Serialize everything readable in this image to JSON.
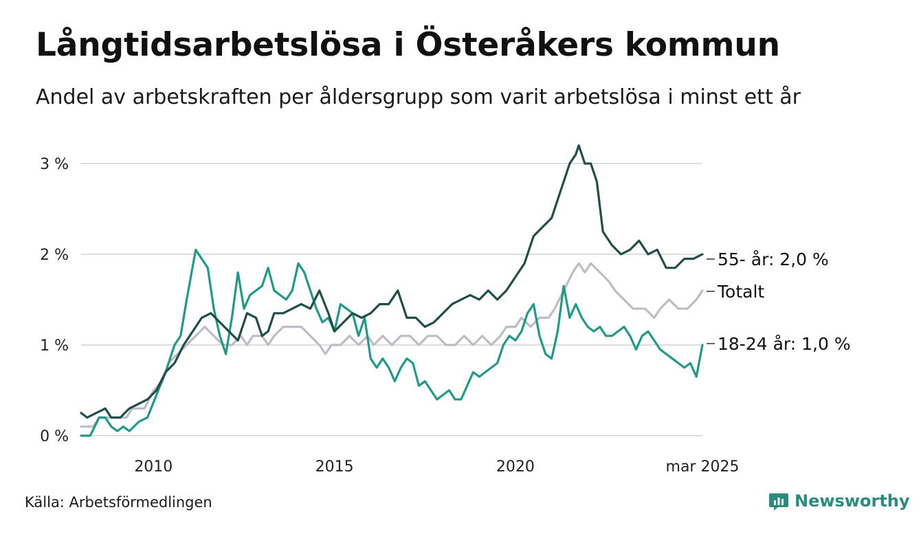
{
  "header": {
    "title": "Långtidsarbetslösa i Österåkers kommun",
    "subtitle": "Andel av arbetskraften per åldersgrupp som varit arbetslösa i minst ett år"
  },
  "footer": {
    "source": "Källa: Arbetsförmedlingen",
    "brand": "Newsworthy",
    "brand_icon": "newsworthy-chart-icon"
  },
  "colors": {
    "series_55": "#1f4d47",
    "series_totalt": "#bdbbc5",
    "series_18_24": "#1f9a88",
    "grid": "#dddddd",
    "brand": "#2a8c7e"
  },
  "chart_data": {
    "type": "line",
    "title": "",
    "xlabel": "",
    "ylabel": "",
    "ylim": [
      0,
      3.2
    ],
    "xlim": [
      "2008-01",
      "2025-03"
    ],
    "grid": "horizontal",
    "yticks": [
      {
        "value": 0,
        "label": "0 %"
      },
      {
        "value": 1,
        "label": "1 %"
      },
      {
        "value": 2,
        "label": "2 %"
      },
      {
        "value": 3,
        "label": "3 %"
      }
    ],
    "xticks": [
      {
        "value": "2010-01",
        "label": "2010"
      },
      {
        "value": "2015-01",
        "label": "2015"
      },
      {
        "value": "2020-01",
        "label": "2020"
      },
      {
        "value": "2025-03",
        "label": "mar 2025"
      }
    ],
    "series": [
      {
        "key": "totalt",
        "name": "Totalt",
        "end_label": "Totalt",
        "points": [
          [
            "2008-01",
            0.1
          ],
          [
            "2008-05",
            0.1
          ],
          [
            "2008-07",
            0.2
          ],
          [
            "2008-11",
            0.2
          ],
          [
            "2009-04",
            0.2
          ],
          [
            "2009-06",
            0.3
          ],
          [
            "2009-10",
            0.3
          ],
          [
            "2010-01",
            0.5
          ],
          [
            "2010-04",
            0.6
          ],
          [
            "2010-06",
            0.8
          ],
          [
            "2010-09",
            0.9
          ],
          [
            "2010-12",
            1.0
          ],
          [
            "2011-03",
            1.1
          ],
          [
            "2011-06",
            1.2
          ],
          [
            "2011-09",
            1.1
          ],
          [
            "2011-12",
            1.0
          ],
          [
            "2012-03",
            1.0
          ],
          [
            "2012-06",
            1.1
          ],
          [
            "2012-08",
            1.0
          ],
          [
            "2012-10",
            1.1
          ],
          [
            "2013-01",
            1.1
          ],
          [
            "2013-03",
            1.0
          ],
          [
            "2013-05",
            1.1
          ],
          [
            "2013-08",
            1.2
          ],
          [
            "2013-11",
            1.2
          ],
          [
            "2014-02",
            1.2
          ],
          [
            "2014-05",
            1.1
          ],
          [
            "2014-08",
            1.0
          ],
          [
            "2014-10",
            0.9
          ],
          [
            "2014-12",
            1.0
          ],
          [
            "2015-03",
            1.0
          ],
          [
            "2015-06",
            1.1
          ],
          [
            "2015-09",
            1.0
          ],
          [
            "2015-12",
            1.1
          ],
          [
            "2016-02",
            1.0
          ],
          [
            "2016-05",
            1.1
          ],
          [
            "2016-08",
            1.0
          ],
          [
            "2016-11",
            1.1
          ],
          [
            "2017-02",
            1.1
          ],
          [
            "2017-05",
            1.0
          ],
          [
            "2017-08",
            1.1
          ],
          [
            "2017-11",
            1.1
          ],
          [
            "2018-02",
            1.0
          ],
          [
            "2018-05",
            1.0
          ],
          [
            "2018-08",
            1.1
          ],
          [
            "2018-11",
            1.0
          ],
          [
            "2019-02",
            1.1
          ],
          [
            "2019-05",
            1.0
          ],
          [
            "2019-08",
            1.1
          ],
          [
            "2019-10",
            1.2
          ],
          [
            "2020-01",
            1.2
          ],
          [
            "2020-03",
            1.3
          ],
          [
            "2020-06",
            1.2
          ],
          [
            "2020-09",
            1.3
          ],
          [
            "2020-12",
            1.3
          ],
          [
            "2021-02",
            1.4
          ],
          [
            "2021-05",
            1.6
          ],
          [
            "2021-08",
            1.8
          ],
          [
            "2021-10",
            1.9
          ],
          [
            "2021-12",
            1.8
          ],
          [
            "2022-02",
            1.9
          ],
          [
            "2022-05",
            1.8
          ],
          [
            "2022-08",
            1.7
          ],
          [
            "2022-10",
            1.6
          ],
          [
            "2023-01",
            1.5
          ],
          [
            "2023-04",
            1.4
          ],
          [
            "2023-08",
            1.4
          ],
          [
            "2023-11",
            1.3
          ],
          [
            "2024-01",
            1.4
          ],
          [
            "2024-04",
            1.5
          ],
          [
            "2024-07",
            1.4
          ],
          [
            "2024-10",
            1.4
          ],
          [
            "2025-01",
            1.5
          ],
          [
            "2025-03",
            1.6
          ]
        ]
      },
      {
        "key": "s18_24",
        "name": "18-24 år",
        "end_label": "18-24 år: 1,0 %",
        "points": [
          [
            "2008-01",
            0.0
          ],
          [
            "2008-04",
            0.0
          ],
          [
            "2008-07",
            0.2
          ],
          [
            "2008-09",
            0.2
          ],
          [
            "2008-11",
            0.1
          ],
          [
            "2009-01",
            0.05
          ],
          [
            "2009-03",
            0.1
          ],
          [
            "2009-05",
            0.05
          ],
          [
            "2009-08",
            0.15
          ],
          [
            "2009-11",
            0.2
          ],
          [
            "2010-02",
            0.45
          ],
          [
            "2010-05",
            0.7
          ],
          [
            "2010-08",
            1.0
          ],
          [
            "2010-10",
            1.1
          ],
          [
            "2010-12",
            1.5
          ],
          [
            "2011-03",
            2.05
          ],
          [
            "2011-05",
            1.95
          ],
          [
            "2011-07",
            1.85
          ],
          [
            "2011-09",
            1.4
          ],
          [
            "2011-11",
            1.1
          ],
          [
            "2012-01",
            0.9
          ],
          [
            "2012-03",
            1.3
          ],
          [
            "2012-05",
            1.8
          ],
          [
            "2012-07",
            1.4
          ],
          [
            "2012-09",
            1.55
          ],
          [
            "2012-11",
            1.6
          ],
          [
            "2013-01",
            1.65
          ],
          [
            "2013-03",
            1.85
          ],
          [
            "2013-05",
            1.6
          ],
          [
            "2013-07",
            1.55
          ],
          [
            "2013-09",
            1.5
          ],
          [
            "2013-11",
            1.6
          ],
          [
            "2014-01",
            1.9
          ],
          [
            "2014-03",
            1.8
          ],
          [
            "2014-05",
            1.6
          ],
          [
            "2014-07",
            1.4
          ],
          [
            "2014-09",
            1.25
          ],
          [
            "2014-11",
            1.3
          ],
          [
            "2015-01",
            1.15
          ],
          [
            "2015-03",
            1.45
          ],
          [
            "2015-05",
            1.4
          ],
          [
            "2015-07",
            1.35
          ],
          [
            "2015-09",
            1.1
          ],
          [
            "2015-11",
            1.3
          ],
          [
            "2016-01",
            0.85
          ],
          [
            "2016-03",
            0.75
          ],
          [
            "2016-05",
            0.85
          ],
          [
            "2016-07",
            0.75
          ],
          [
            "2016-09",
            0.6
          ],
          [
            "2016-11",
            0.75
          ],
          [
            "2017-01",
            0.85
          ],
          [
            "2017-03",
            0.8
          ],
          [
            "2017-05",
            0.55
          ],
          [
            "2017-07",
            0.6
          ],
          [
            "2017-09",
            0.5
          ],
          [
            "2017-11",
            0.4
          ],
          [
            "2018-01",
            0.45
          ],
          [
            "2018-03",
            0.5
          ],
          [
            "2018-05",
            0.4
          ],
          [
            "2018-07",
            0.4
          ],
          [
            "2018-09",
            0.55
          ],
          [
            "2018-11",
            0.7
          ],
          [
            "2019-01",
            0.65
          ],
          [
            "2019-03",
            0.7
          ],
          [
            "2019-05",
            0.75
          ],
          [
            "2019-07",
            0.8
          ],
          [
            "2019-09",
            1.0
          ],
          [
            "2019-11",
            1.1
          ],
          [
            "2020-01",
            1.05
          ],
          [
            "2020-03",
            1.15
          ],
          [
            "2020-05",
            1.35
          ],
          [
            "2020-07",
            1.45
          ],
          [
            "2020-09",
            1.1
          ],
          [
            "2020-11",
            0.9
          ],
          [
            "2021-01",
            0.85
          ],
          [
            "2021-03",
            1.15
          ],
          [
            "2021-05",
            1.65
          ],
          [
            "2021-07",
            1.3
          ],
          [
            "2021-09",
            1.45
          ],
          [
            "2021-11",
            1.3
          ],
          [
            "2022-01",
            1.2
          ],
          [
            "2022-03",
            1.15
          ],
          [
            "2022-05",
            1.2
          ],
          [
            "2022-07",
            1.1
          ],
          [
            "2022-09",
            1.1
          ],
          [
            "2022-11",
            1.15
          ],
          [
            "2023-01",
            1.2
          ],
          [
            "2023-03",
            1.1
          ],
          [
            "2023-05",
            0.95
          ],
          [
            "2023-07",
            1.1
          ],
          [
            "2023-09",
            1.15
          ],
          [
            "2023-11",
            1.05
          ],
          [
            "2024-01",
            0.95
          ],
          [
            "2024-03",
            0.9
          ],
          [
            "2024-05",
            0.85
          ],
          [
            "2024-07",
            0.8
          ],
          [
            "2024-09",
            0.75
          ],
          [
            "2024-11",
            0.8
          ],
          [
            "2025-01",
            0.65
          ],
          [
            "2025-03",
            1.0
          ]
        ]
      },
      {
        "key": "s55",
        "name": "55- år",
        "end_label": "55- år: 2,0 %",
        "points": [
          [
            "2008-01",
            0.25
          ],
          [
            "2008-03",
            0.2
          ],
          [
            "2008-06",
            0.25
          ],
          [
            "2008-09",
            0.3
          ],
          [
            "2008-11",
            0.2
          ],
          [
            "2009-02",
            0.2
          ],
          [
            "2009-05",
            0.3
          ],
          [
            "2009-08",
            0.35
          ],
          [
            "2009-11",
            0.4
          ],
          [
            "2010-02",
            0.5
          ],
          [
            "2010-05",
            0.7
          ],
          [
            "2010-08",
            0.8
          ],
          [
            "2010-11",
            1.0
          ],
          [
            "2011-02",
            1.15
          ],
          [
            "2011-05",
            1.3
          ],
          [
            "2011-08",
            1.35
          ],
          [
            "2011-11",
            1.25
          ],
          [
            "2012-02",
            1.15
          ],
          [
            "2012-05",
            1.05
          ],
          [
            "2012-08",
            1.35
          ],
          [
            "2012-11",
            1.3
          ],
          [
            "2013-01",
            1.1
          ],
          [
            "2013-03",
            1.15
          ],
          [
            "2013-05",
            1.35
          ],
          [
            "2013-08",
            1.35
          ],
          [
            "2013-11",
            1.4
          ],
          [
            "2014-02",
            1.45
          ],
          [
            "2014-05",
            1.4
          ],
          [
            "2014-08",
            1.6
          ],
          [
            "2014-11",
            1.35
          ],
          [
            "2015-01",
            1.15
          ],
          [
            "2015-04",
            1.25
          ],
          [
            "2015-07",
            1.35
          ],
          [
            "2015-10",
            1.3
          ],
          [
            "2016-01",
            1.35
          ],
          [
            "2016-04",
            1.45
          ],
          [
            "2016-07",
            1.45
          ],
          [
            "2016-10",
            1.6
          ],
          [
            "2017-01",
            1.3
          ],
          [
            "2017-04",
            1.3
          ],
          [
            "2017-07",
            1.2
          ],
          [
            "2017-10",
            1.25
          ],
          [
            "2018-01",
            1.35
          ],
          [
            "2018-04",
            1.45
          ],
          [
            "2018-07",
            1.5
          ],
          [
            "2018-10",
            1.55
          ],
          [
            "2019-01",
            1.5
          ],
          [
            "2019-04",
            1.6
          ],
          [
            "2019-07",
            1.5
          ],
          [
            "2019-10",
            1.6
          ],
          [
            "2020-01",
            1.75
          ],
          [
            "2020-04",
            1.9
          ],
          [
            "2020-07",
            2.2
          ],
          [
            "2020-10",
            2.3
          ],
          [
            "2021-01",
            2.4
          ],
          [
            "2021-04",
            2.7
          ],
          [
            "2021-07",
            3.0
          ],
          [
            "2021-09",
            3.1
          ],
          [
            "2021-10",
            3.2
          ],
          [
            "2021-12",
            3.0
          ],
          [
            "2022-02",
            3.0
          ],
          [
            "2022-04",
            2.8
          ],
          [
            "2022-06",
            2.25
          ],
          [
            "2022-09",
            2.1
          ],
          [
            "2022-12",
            2.0
          ],
          [
            "2023-03",
            2.05
          ],
          [
            "2023-06",
            2.15
          ],
          [
            "2023-09",
            2.0
          ],
          [
            "2023-12",
            2.05
          ],
          [
            "2024-03",
            1.85
          ],
          [
            "2024-06",
            1.85
          ],
          [
            "2024-09",
            1.95
          ],
          [
            "2024-12",
            1.95
          ],
          [
            "2025-03",
            2.0
          ]
        ]
      }
    ]
  }
}
